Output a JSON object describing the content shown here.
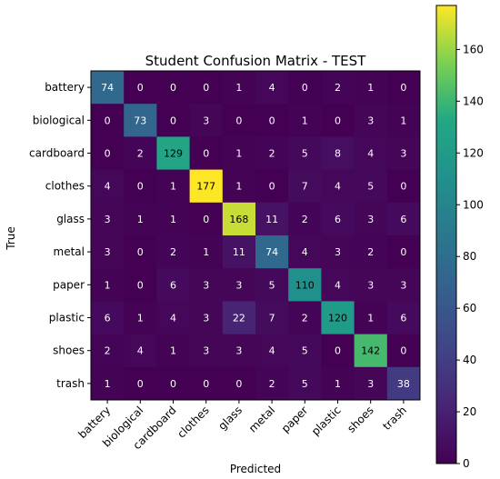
{
  "chart_data": {
    "type": "heatmap",
    "title": "Student Confusion Matrix - TEST",
    "xlabel": "Predicted",
    "ylabel": "True",
    "categories": [
      "battery",
      "biological",
      "cardboard",
      "clothes",
      "glass",
      "metal",
      "paper",
      "plastic",
      "shoes",
      "trash"
    ],
    "values": [
      [
        74,
        0,
        0,
        0,
        1,
        4,
        0,
        2,
        1,
        0
      ],
      [
        0,
        73,
        0,
        3,
        0,
        0,
        1,
        0,
        3,
        1
      ],
      [
        0,
        2,
        129,
        0,
        1,
        2,
        5,
        8,
        4,
        3
      ],
      [
        4,
        0,
        1,
        177,
        1,
        0,
        7,
        4,
        5,
        0
      ],
      [
        3,
        1,
        1,
        0,
        168,
        11,
        2,
        6,
        3,
        6
      ],
      [
        3,
        0,
        2,
        1,
        11,
        74,
        4,
        3,
        2,
        0
      ],
      [
        1,
        0,
        6,
        3,
        3,
        5,
        110,
        4,
        3,
        3
      ],
      [
        6,
        1,
        4,
        3,
        22,
        7,
        2,
        120,
        1,
        6
      ],
      [
        2,
        4,
        1,
        3,
        3,
        4,
        5,
        0,
        142,
        0
      ],
      [
        1,
        0,
        0,
        0,
        0,
        2,
        5,
        1,
        3,
        38
      ]
    ],
    "colorbar": {
      "colormap": "viridis",
      "range": [
        0,
        177
      ],
      "ticks": [
        0,
        20,
        40,
        60,
        80,
        100,
        120,
        140,
        160
      ]
    },
    "grid": false,
    "legend": "none"
  }
}
